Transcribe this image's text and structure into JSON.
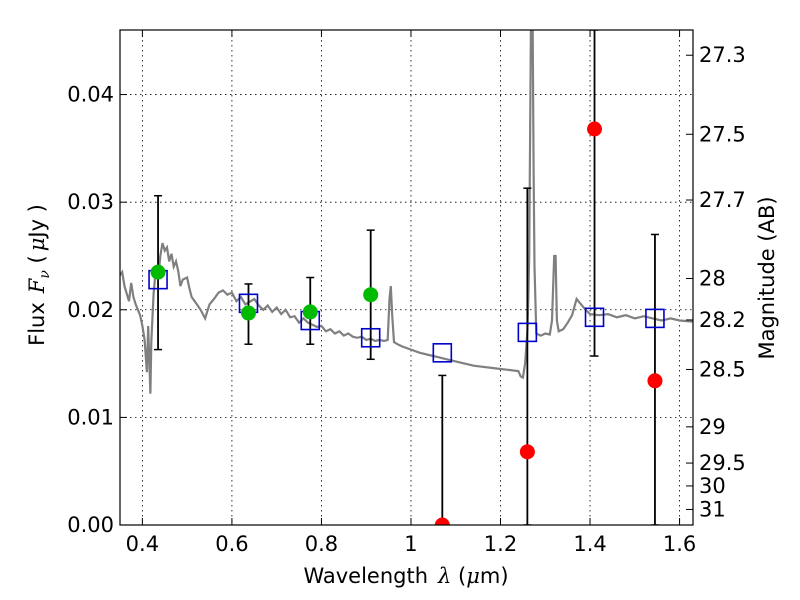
{
  "chart_data": {
    "type": "scatter",
    "title": "",
    "xlabel": {
      "main": "Wavelength",
      "symbol": "λ",
      "unit_open": " (",
      "unit_mu": "μ",
      "unit_rest": "m)"
    },
    "ylabel": {
      "main": "Flux",
      "symbol": "F",
      "symbol_sub": "ν",
      "unit_open": " (",
      "unit_mu": "μ",
      "unit_rest": "Jy )"
    },
    "y2label": "Magnitude (AB)",
    "xlim": [
      0.35,
      1.63
    ],
    "ylim": [
      0.0,
      0.046
    ],
    "grid": true,
    "x_ticks": [
      {
        "value": 0.4,
        "label": "0.4"
      },
      {
        "value": 0.6,
        "label": "0.6"
      },
      {
        "value": 0.8,
        "label": "0.8"
      },
      {
        "value": 1.0,
        "label": "1"
      },
      {
        "value": 1.2,
        "label": "1.2"
      },
      {
        "value": 1.4,
        "label": "1.4"
      },
      {
        "value": 1.6,
        "label": "1.6"
      }
    ],
    "y_ticks": [
      {
        "value": 0.0,
        "label": "0.00"
      },
      {
        "value": 0.01,
        "label": "0.01"
      },
      {
        "value": 0.02,
        "label": "0.02"
      },
      {
        "value": 0.03,
        "label": "0.03"
      },
      {
        "value": 0.04,
        "label": "0.04"
      }
    ],
    "y2_ticks": [
      {
        "mag": 27.3,
        "label": "27.3"
      },
      {
        "mag": 27.5,
        "label": "27.5"
      },
      {
        "mag": 27.7,
        "label": "27.7"
      },
      {
        "mag": 28.0,
        "label": "28"
      },
      {
        "mag": 28.2,
        "label": "28.2"
      },
      {
        "mag": 28.5,
        "label": "28.5"
      },
      {
        "mag": 29.0,
        "label": "29"
      },
      {
        "mag": 29.5,
        "label": "29.5"
      },
      {
        "mag": 30.0,
        "label": "30"
      },
      {
        "mag": 31.0,
        "label": "31"
      }
    ],
    "colors": {
      "model": "#808080",
      "observed_detection": "#00bb00",
      "observed_nondetection": "#ff0000",
      "model_photometry": "#0000cc",
      "error_bar": "#000000"
    },
    "series": [
      {
        "kind": "model_sed",
        "points": [
          [
            0.35,
            0.0232
          ],
          [
            0.355,
            0.0235
          ],
          [
            0.36,
            0.0222
          ],
          [
            0.365,
            0.0215
          ],
          [
            0.37,
            0.0208
          ],
          [
            0.375,
            0.0225
          ],
          [
            0.38,
            0.0212
          ],
          [
            0.385,
            0.0205
          ],
          [
            0.39,
            0.02
          ],
          [
            0.395,
            0.0195
          ],
          [
            0.4,
            0.0185
          ],
          [
            0.405,
            0.0172
          ],
          [
            0.41,
            0.0142
          ],
          [
            0.413,
            0.0185
          ],
          [
            0.418,
            0.0122
          ],
          [
            0.42,
            0.017
          ],
          [
            0.425,
            0.0215
          ],
          [
            0.43,
            0.0238
          ],
          [
            0.435,
            0.0228
          ],
          [
            0.44,
            0.025
          ],
          [
            0.445,
            0.0262
          ],
          [
            0.45,
            0.0255
          ],
          [
            0.455,
            0.0258
          ],
          [
            0.46,
            0.0245
          ],
          [
            0.465,
            0.0252
          ],
          [
            0.47,
            0.024
          ],
          [
            0.475,
            0.0245
          ],
          [
            0.48,
            0.0236
          ],
          [
            0.485,
            0.0222
          ],
          [
            0.49,
            0.0228
          ],
          [
            0.5,
            0.023
          ],
          [
            0.505,
            0.022
          ],
          [
            0.51,
            0.0212
          ],
          [
            0.52,
            0.0206
          ],
          [
            0.53,
            0.02
          ],
          [
            0.54,
            0.0192
          ],
          [
            0.55,
            0.0205
          ],
          [
            0.56,
            0.021
          ],
          [
            0.57,
            0.0216
          ],
          [
            0.58,
            0.0218
          ],
          [
            0.59,
            0.0214
          ],
          [
            0.6,
            0.0216
          ],
          [
            0.61,
            0.0208
          ],
          [
            0.62,
            0.0212
          ],
          [
            0.63,
            0.0205
          ],
          [
            0.65,
            0.021
          ],
          [
            0.66,
            0.0204
          ],
          [
            0.67,
            0.02
          ],
          [
            0.68,
            0.0204
          ],
          [
            0.69,
            0.0198
          ],
          [
            0.7,
            0.0202
          ],
          [
            0.71,
            0.0196
          ],
          [
            0.72,
            0.02
          ],
          [
            0.73,
            0.0193
          ],
          [
            0.74,
            0.0194
          ],
          [
            0.75,
            0.0188
          ],
          [
            0.76,
            0.0192
          ],
          [
            0.77,
            0.0188
          ],
          [
            0.78,
            0.0186
          ],
          [
            0.79,
            0.0184
          ],
          [
            0.8,
            0.0185
          ],
          [
            0.81,
            0.018
          ],
          [
            0.82,
            0.0182
          ],
          [
            0.83,
            0.0178
          ],
          [
            0.84,
            0.018
          ],
          [
            0.85,
            0.0176
          ],
          [
            0.86,
            0.0178
          ],
          [
            0.87,
            0.0175
          ],
          [
            0.88,
            0.0174
          ],
          [
            0.89,
            0.0175
          ],
          [
            0.9,
            0.0172
          ],
          [
            0.91,
            0.0173
          ],
          [
            0.92,
            0.0171
          ],
          [
            0.93,
            0.0172
          ],
          [
            0.94,
            0.0171
          ],
          [
            0.948,
            0.0172
          ],
          [
            0.952,
            0.021
          ],
          [
            0.955,
            0.0222
          ],
          [
            0.958,
            0.0195
          ],
          [
            0.962,
            0.017
          ],
          [
            0.97,
            0.0168
          ],
          [
            0.98,
            0.0166
          ],
          [
            1.0,
            0.0163
          ],
          [
            1.02,
            0.016
          ],
          [
            1.04,
            0.0158
          ],
          [
            1.06,
            0.0156
          ],
          [
            1.08,
            0.0154
          ],
          [
            1.1,
            0.0152
          ],
          [
            1.12,
            0.015
          ],
          [
            1.14,
            0.0148
          ],
          [
            1.16,
            0.0147
          ],
          [
            1.18,
            0.0146
          ],
          [
            1.2,
            0.0145
          ],
          [
            1.22,
            0.0144
          ],
          [
            1.24,
            0.0143
          ],
          [
            1.245,
            0.0138
          ],
          [
            1.25,
            0.0137
          ],
          [
            1.255,
            0.015
          ],
          [
            1.26,
            0.018
          ],
          [
            1.262,
            0.021
          ],
          [
            1.264,
            0.025
          ],
          [
            1.266,
            0.036
          ],
          [
            1.268,
            0.046
          ],
          [
            1.272,
            0.046
          ],
          [
            1.274,
            0.033
          ],
          [
            1.276,
            0.024
          ],
          [
            1.28,
            0.0178
          ],
          [
            1.29,
            0.0176
          ],
          [
            1.3,
            0.0178
          ],
          [
            1.31,
            0.0177
          ],
          [
            1.315,
            0.019
          ],
          [
            1.32,
            0.025
          ],
          [
            1.323,
            0.025
          ],
          [
            1.326,
            0.019
          ],
          [
            1.33,
            0.018
          ],
          [
            1.34,
            0.0182
          ],
          [
            1.35,
            0.0188
          ],
          [
            1.36,
            0.0195
          ],
          [
            1.37,
            0.021
          ],
          [
            1.38,
            0.0205
          ],
          [
            1.39,
            0.02
          ],
          [
            1.4,
            0.0196
          ],
          [
            1.42,
            0.0195
          ],
          [
            1.44,
            0.0196
          ],
          [
            1.46,
            0.0193
          ],
          [
            1.48,
            0.0195
          ],
          [
            1.5,
            0.0192
          ],
          [
            1.52,
            0.0194
          ],
          [
            1.54,
            0.0192
          ],
          [
            1.56,
            0.019
          ],
          [
            1.58,
            0.0192
          ],
          [
            1.6,
            0.019
          ],
          [
            1.63,
            0.0189
          ]
        ]
      },
      {
        "kind": "observed_flux_with_errors",
        "points": [
          {
            "x": 0.435,
            "y": 0.0235,
            "ylow": 0.0163,
            "yhigh": 0.0306,
            "detected": true
          },
          {
            "x": 0.637,
            "y": 0.0197,
            "ylow": 0.0168,
            "yhigh": 0.0224,
            "detected": true
          },
          {
            "x": 0.775,
            "y": 0.0198,
            "ylow": 0.0168,
            "yhigh": 0.023,
            "detected": true
          },
          {
            "x": 0.91,
            "y": 0.0214,
            "ylow": 0.0154,
            "yhigh": 0.0274,
            "detected": true
          },
          {
            "x": 1.07,
            "y": 0.0,
            "ylow": 0.0,
            "yhigh": 0.0139,
            "detected": false
          },
          {
            "x": 1.26,
            "y": 0.0068,
            "ylow": 0.0,
            "yhigh": 0.0313,
            "detected": false
          },
          {
            "x": 1.41,
            "y": 0.0368,
            "ylow": 0.0157,
            "yhigh": 0.046,
            "detected": false
          },
          {
            "x": 1.545,
            "y": 0.0134,
            "ylow": 0.0,
            "yhigh": 0.027,
            "detected": false
          }
        ]
      },
      {
        "kind": "model_photometry",
        "points": [
          [
            0.435,
            0.0228
          ],
          [
            0.637,
            0.0206
          ],
          [
            0.775,
            0.019
          ],
          [
            0.91,
            0.0174
          ],
          [
            1.07,
            0.016
          ],
          [
            1.26,
            0.0179
          ],
          [
            1.41,
            0.0193
          ],
          [
            1.545,
            0.0192
          ]
        ]
      }
    ]
  }
}
